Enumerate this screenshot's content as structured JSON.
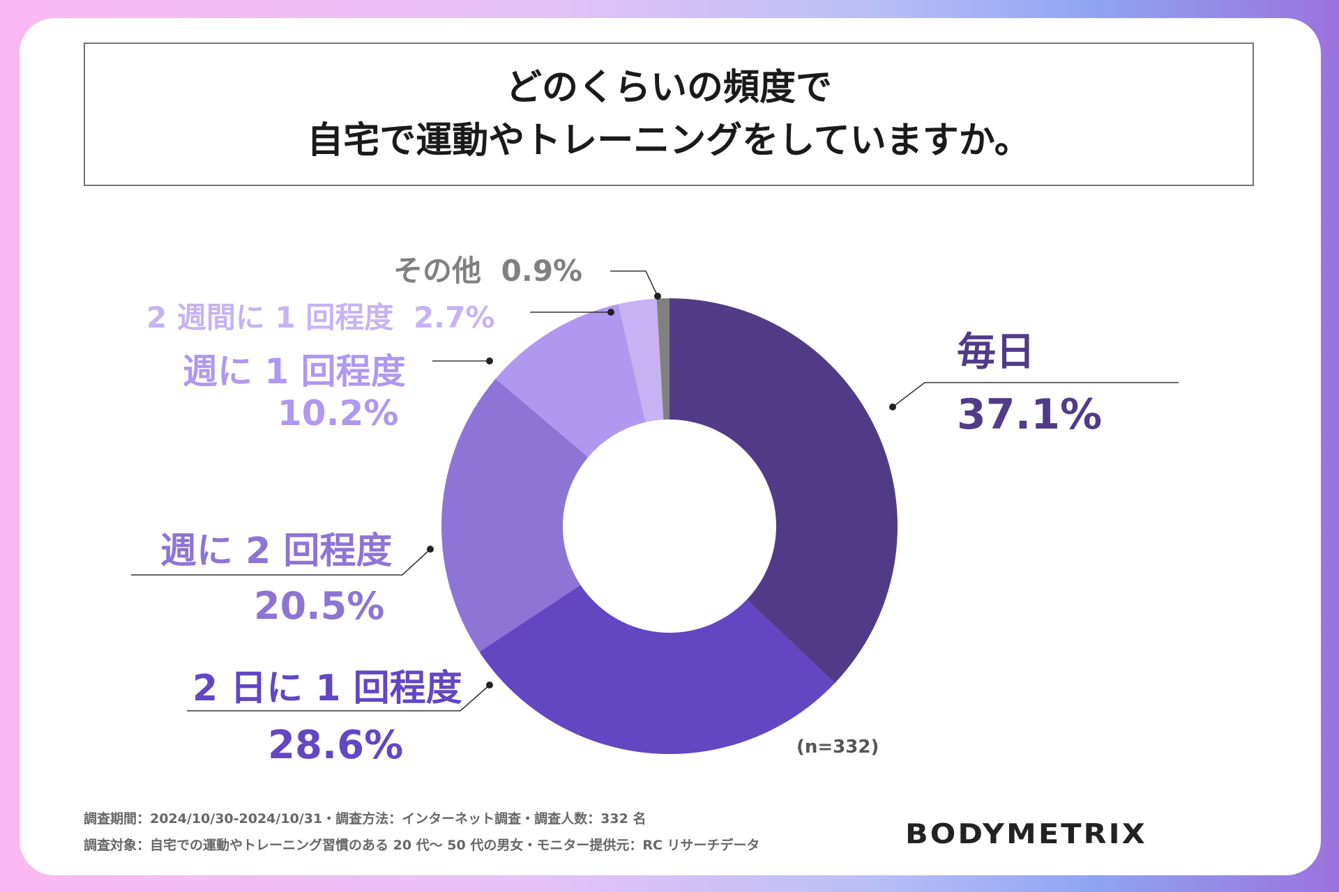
{
  "title_lines": [
    "どのくらいの頻度で",
    "自宅で運動やトレーニングをしていますか。"
  ],
  "chart_data": {
    "type": "pie",
    "title": "どのくらいの頻度で 自宅で運動やトレーニングをしていますか。",
    "categories": [
      "毎日",
      "2 日に 1 回程度",
      "週に 2 回程度",
      "週に 1 回程度",
      "2 週間に 1 回程度",
      "その他"
    ],
    "values": [
      37.1,
      28.6,
      20.5,
      10.2,
      2.7,
      0.9
    ],
    "value_labels": [
      "37.1%",
      "28.6%",
      "20.5%",
      "10.2%",
      "2.7%",
      "0.9%"
    ],
    "colors": [
      "#513b87",
      "#6246c2",
      "#8e74d4",
      "#b097ef",
      "#c7b2f3",
      "#808080"
    ],
    "donut": true,
    "legend": "none",
    "n_label": "(n=332)"
  },
  "footer": {
    "line1": "調査期間：2024/10/30-2024/10/31・調査方法：インターネット調査・調査人数：332 名",
    "line2": "調査対象：自宅での運動やトレーニング習慣のある 20 代〜 50 代の男女・モニター提供元：RC リサーチデータ"
  },
  "logo_text": "BODYMETRIX"
}
